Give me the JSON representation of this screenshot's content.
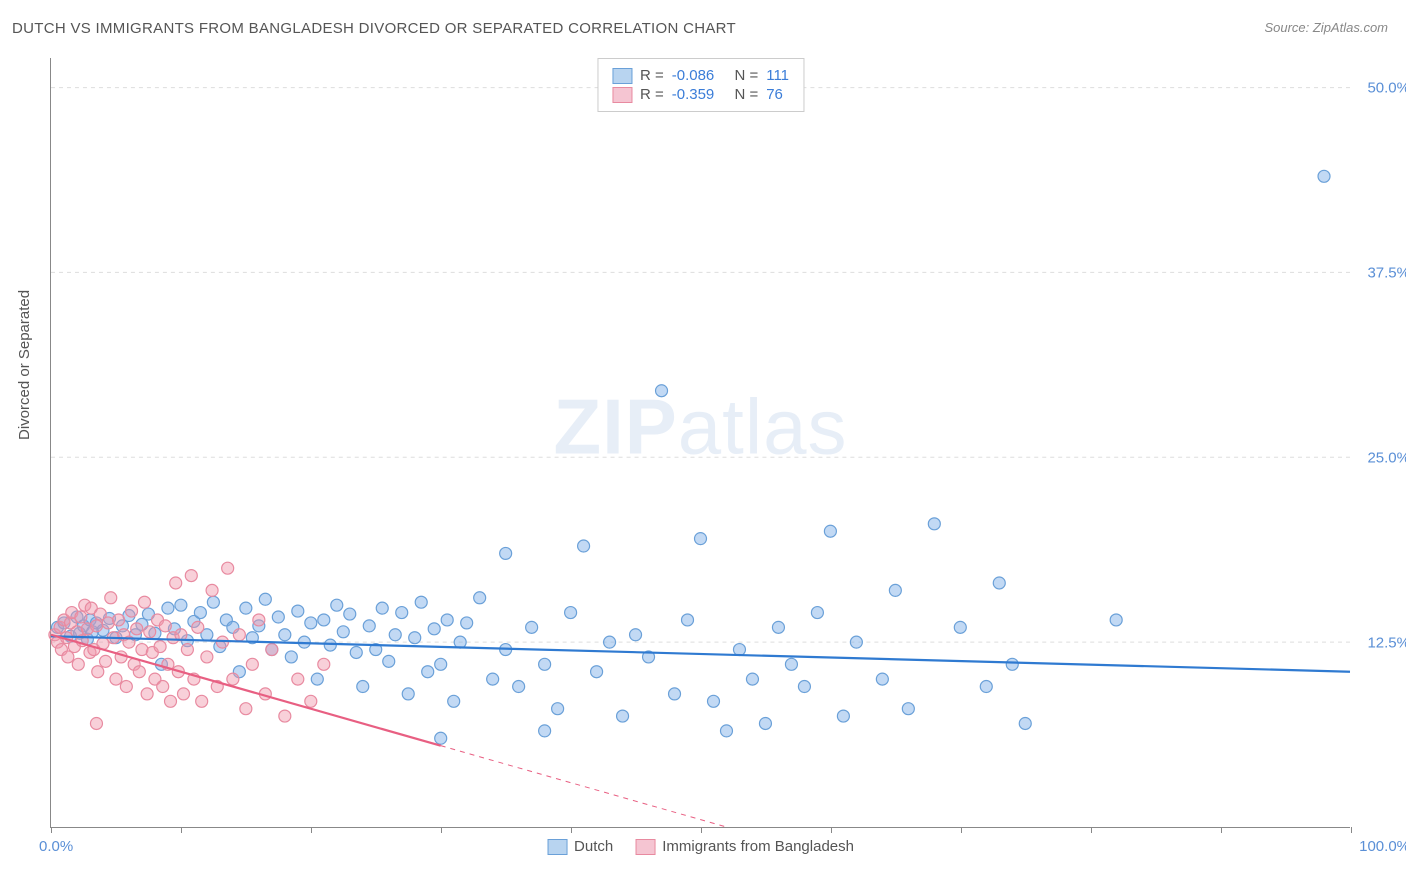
{
  "title": "DUTCH VS IMMIGRANTS FROM BANGLADESH DIVORCED OR SEPARATED CORRELATION CHART",
  "source": "Source: ZipAtlas.com",
  "ylabel": "Divorced or Separated",
  "watermark_zip": "ZIP",
  "watermark_atlas": "atlas",
  "chart": {
    "type": "scatter",
    "xlim": [
      0,
      100
    ],
    "ylim": [
      0,
      52
    ],
    "yticks": [
      12.5,
      25.0,
      37.5,
      50.0
    ],
    "ytick_labels": [
      "12.5%",
      "25.0%",
      "37.5%",
      "50.0%"
    ],
    "xtick_positions": [
      0,
      10,
      20,
      30,
      40,
      50,
      60,
      70,
      80,
      90,
      100
    ],
    "x_axis_left_label": "0.0%",
    "x_axis_right_label": "100.0%",
    "background_color": "#ffffff",
    "grid_color": "#dddddd",
    "marker_radius": 6,
    "marker_stroke_width": 1.2,
    "line_width": 2.2,
    "series": [
      {
        "key": "dutch",
        "label": "Dutch",
        "R": "-0.086",
        "N": "111",
        "color_fill": "rgba(120,170,230,0.45)",
        "color_stroke": "#6aa0d8",
        "swatch_fill": "#b8d4f0",
        "swatch_border": "#6aa0d8",
        "regression": {
          "x1": 0,
          "y1": 12.9,
          "x2": 100,
          "y2": 10.5,
          "color": "#2f7ad1"
        },
        "points": [
          [
            0.5,
            13.5
          ],
          [
            1,
            13.8
          ],
          [
            1.5,
            12.9
          ],
          [
            2,
            14.2
          ],
          [
            2.2,
            13.1
          ],
          [
            2.5,
            13.6
          ],
          [
            2.8,
            12.7
          ],
          [
            3,
            14.0
          ],
          [
            3.2,
            13.2
          ],
          [
            3.5,
            13.8
          ],
          [
            4,
            13.3
          ],
          [
            4.5,
            14.1
          ],
          [
            5,
            12.8
          ],
          [
            5.5,
            13.6
          ],
          [
            6,
            14.3
          ],
          [
            6.5,
            13.0
          ],
          [
            7,
            13.7
          ],
          [
            7.5,
            14.4
          ],
          [
            8,
            13.1
          ],
          [
            8.5,
            11.0
          ],
          [
            9,
            14.8
          ],
          [
            9.5,
            13.4
          ],
          [
            10,
            15.0
          ],
          [
            10.5,
            12.6
          ],
          [
            11,
            13.9
          ],
          [
            11.5,
            14.5
          ],
          [
            12,
            13.0
          ],
          [
            12.5,
            15.2
          ],
          [
            13,
            12.2
          ],
          [
            13.5,
            14.0
          ],
          [
            14,
            13.5
          ],
          [
            14.5,
            10.5
          ],
          [
            15,
            14.8
          ],
          [
            15.5,
            12.8
          ],
          [
            16,
            13.6
          ],
          [
            16.5,
            15.4
          ],
          [
            17,
            12.0
          ],
          [
            17.5,
            14.2
          ],
          [
            18,
            13.0
          ],
          [
            18.5,
            11.5
          ],
          [
            19,
            14.6
          ],
          [
            19.5,
            12.5
          ],
          [
            20,
            13.8
          ],
          [
            20.5,
            10.0
          ],
          [
            21,
            14.0
          ],
          [
            21.5,
            12.3
          ],
          [
            22,
            15.0
          ],
          [
            22.5,
            13.2
          ],
          [
            23,
            14.4
          ],
          [
            23.5,
            11.8
          ],
          [
            24,
            9.5
          ],
          [
            24.5,
            13.6
          ],
          [
            25,
            12.0
          ],
          [
            25.5,
            14.8
          ],
          [
            26,
            11.2
          ],
          [
            26.5,
            13.0
          ],
          [
            27,
            14.5
          ],
          [
            27.5,
            9.0
          ],
          [
            28,
            12.8
          ],
          [
            28.5,
            15.2
          ],
          [
            29,
            10.5
          ],
          [
            29.5,
            13.4
          ],
          [
            30,
            11.0
          ],
          [
            30.5,
            14.0
          ],
          [
            31,
            8.5
          ],
          [
            31.5,
            12.5
          ],
          [
            32,
            13.8
          ],
          [
            33,
            15.5
          ],
          [
            34,
            10.0
          ],
          [
            35,
            12.0
          ],
          [
            35,
            18.5
          ],
          [
            36,
            9.5
          ],
          [
            37,
            13.5
          ],
          [
            38,
            11.0
          ],
          [
            39,
            8.0
          ],
          [
            40,
            14.5
          ],
          [
            41,
            19.0
          ],
          [
            42,
            10.5
          ],
          [
            43,
            12.5
          ],
          [
            44,
            7.5
          ],
          [
            45,
            13.0
          ],
          [
            46,
            11.5
          ],
          [
            47,
            29.5
          ],
          [
            48,
            9.0
          ],
          [
            49,
            14.0
          ],
          [
            50,
            19.5
          ],
          [
            51,
            8.5
          ],
          [
            52,
            6.5
          ],
          [
            53,
            12.0
          ],
          [
            54,
            10.0
          ],
          [
            55,
            7.0
          ],
          [
            56,
            13.5
          ],
          [
            57,
            11.0
          ],
          [
            58,
            9.5
          ],
          [
            59,
            14.5
          ],
          [
            60,
            20.0
          ],
          [
            61,
            7.5
          ],
          [
            62,
            12.5
          ],
          [
            64,
            10.0
          ],
          [
            65,
            16.0
          ],
          [
            66,
            8.0
          ],
          [
            68,
            20.5
          ],
          [
            70,
            13.5
          ],
          [
            72,
            9.5
          ],
          [
            73,
            16.5
          ],
          [
            74,
            11.0
          ],
          [
            75,
            7.0
          ],
          [
            82,
            14.0
          ],
          [
            98,
            44.0
          ],
          [
            30,
            6.0
          ],
          [
            38,
            6.5
          ]
        ]
      },
      {
        "key": "bangladesh",
        "label": "Immigrants from Bangladesh",
        "R": "-0.359",
        "N": "76",
        "color_fill": "rgba(240,150,170,0.45)",
        "color_stroke": "#e88aa0",
        "swatch_fill": "#f5c5d2",
        "swatch_border": "#e88aa0",
        "regression": {
          "x1": 0,
          "y1": 13.0,
          "x2": 52,
          "y2": 0,
          "color": "#e85f82"
        },
        "regression_dash_after": 30,
        "points": [
          [
            0.3,
            13.0
          ],
          [
            0.5,
            12.5
          ],
          [
            0.7,
            13.5
          ],
          [
            0.8,
            12.0
          ],
          [
            1.0,
            14.0
          ],
          [
            1.2,
            12.8
          ],
          [
            1.3,
            11.5
          ],
          [
            1.5,
            13.8
          ],
          [
            1.6,
            14.5
          ],
          [
            1.8,
            12.2
          ],
          [
            2.0,
            13.2
          ],
          [
            2.1,
            11.0
          ],
          [
            2.3,
            14.2
          ],
          [
            2.4,
            12.6
          ],
          [
            2.6,
            15.0
          ],
          [
            2.8,
            13.4
          ],
          [
            3.0,
            11.8
          ],
          [
            3.1,
            14.8
          ],
          [
            3.3,
            12.0
          ],
          [
            3.5,
            13.6
          ],
          [
            3.6,
            10.5
          ],
          [
            3.8,
            14.4
          ],
          [
            4.0,
            12.4
          ],
          [
            4.2,
            11.2
          ],
          [
            4.4,
            13.8
          ],
          [
            4.6,
            15.5
          ],
          [
            4.8,
            12.8
          ],
          [
            5.0,
            10.0
          ],
          [
            5.2,
            14.0
          ],
          [
            5.4,
            11.5
          ],
          [
            5.6,
            13.0
          ],
          [
            5.8,
            9.5
          ],
          [
            6.0,
            12.5
          ],
          [
            6.2,
            14.6
          ],
          [
            6.4,
            11.0
          ],
          [
            6.6,
            13.4
          ],
          [
            6.8,
            10.5
          ],
          [
            7.0,
            12.0
          ],
          [
            7.2,
            15.2
          ],
          [
            7.4,
            9.0
          ],
          [
            7.6,
            13.2
          ],
          [
            7.8,
            11.8
          ],
          [
            8.0,
            10.0
          ],
          [
            8.2,
            14.0
          ],
          [
            8.4,
            12.2
          ],
          [
            8.6,
            9.5
          ],
          [
            8.8,
            13.6
          ],
          [
            9.0,
            11.0
          ],
          [
            9.2,
            8.5
          ],
          [
            9.4,
            12.8
          ],
          [
            9.6,
            16.5
          ],
          [
            9.8,
            10.5
          ],
          [
            10.0,
            13.0
          ],
          [
            10.2,
            9.0
          ],
          [
            10.5,
            12.0
          ],
          [
            10.8,
            17.0
          ],
          [
            11.0,
            10.0
          ],
          [
            11.3,
            13.5
          ],
          [
            11.6,
            8.5
          ],
          [
            12.0,
            11.5
          ],
          [
            12.4,
            16.0
          ],
          [
            12.8,
            9.5
          ],
          [
            13.2,
            12.5
          ],
          [
            13.6,
            17.5
          ],
          [
            14.0,
            10.0
          ],
          [
            14.5,
            13.0
          ],
          [
            15.0,
            8.0
          ],
          [
            15.5,
            11.0
          ],
          [
            16.0,
            14.0
          ],
          [
            16.5,
            9.0
          ],
          [
            17.0,
            12.0
          ],
          [
            18.0,
            7.5
          ],
          [
            19.0,
            10.0
          ],
          [
            20.0,
            8.5
          ],
          [
            21.0,
            11.0
          ],
          [
            3.5,
            7.0
          ]
        ]
      }
    ]
  },
  "stats_box": {
    "R_label": "R =",
    "N_label": "N ="
  }
}
